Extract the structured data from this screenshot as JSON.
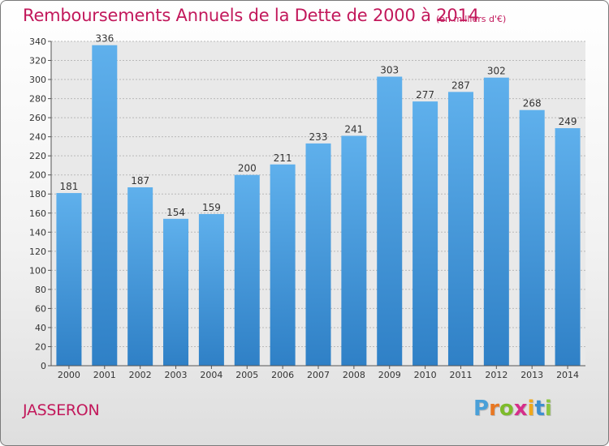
{
  "chart_data": {
    "type": "bar",
    "title": "Remboursements Annuels de la Dette de 2000 à 2014",
    "subtitle": "(en milliers d'€)",
    "categories": [
      "2000",
      "2001",
      "2002",
      "2003",
      "2004",
      "2005",
      "2006",
      "2007",
      "2008",
      "2009",
      "2010",
      "2011",
      "2012",
      "2013",
      "2014"
    ],
    "values": [
      181,
      336,
      187,
      154,
      159,
      200,
      211,
      233,
      241,
      303,
      277,
      287,
      302,
      268,
      249
    ],
    "ylim": [
      0,
      340
    ],
    "ytick_step": 20,
    "grid": true,
    "xlabel": "",
    "ylabel": "",
    "bar_color_top": "#5fb0ec",
    "bar_color_bottom": "#2f80c6"
  },
  "footer": {
    "commune": "JASSERON",
    "brand_letters": [
      "P",
      "r",
      "o",
      "x",
      "i",
      "t",
      "i"
    ],
    "brand_colors": [
      "#4aa0d8",
      "#e87722",
      "#7dbb2b",
      "#d62e8a",
      "#f0a81c",
      "#3d8fd0",
      "#8cc63f"
    ]
  }
}
